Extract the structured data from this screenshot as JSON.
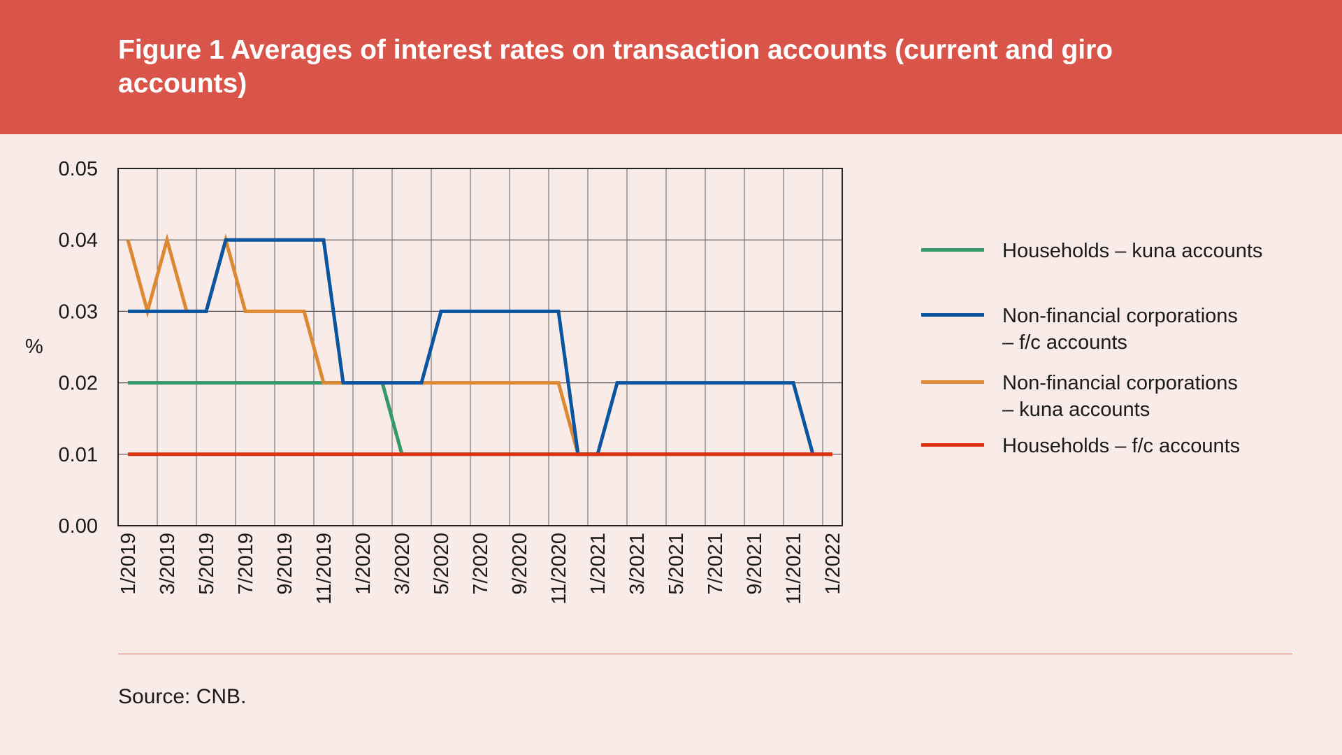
{
  "title": "Figure 1 Averages of interest rates on transaction accounts (current and giro accounts)",
  "source": "Source: CNB.",
  "chart_data": {
    "type": "line",
    "title": "Figure 1 Averages of interest rates on transaction accounts (current and giro accounts)",
    "ylabel": "%",
    "ylim": [
      0,
      0.05
    ],
    "yticks": [
      "0.00",
      "0.01",
      "0.02",
      "0.03",
      "0.04",
      "0.05"
    ],
    "grid": true,
    "legend_position": "right",
    "x": [
      "1/2019",
      "2/2019",
      "3/2019",
      "4/2019",
      "5/2019",
      "6/2019",
      "7/2019",
      "8/2019",
      "9/2019",
      "10/2019",
      "11/2019",
      "12/2019",
      "1/2020",
      "2/2020",
      "3/2020",
      "4/2020",
      "5/2020",
      "6/2020",
      "7/2020",
      "8/2020",
      "9/2020",
      "10/2020",
      "11/2020",
      "12/2020",
      "1/2021",
      "2/2021",
      "3/2021",
      "4/2021",
      "5/2021",
      "6/2021",
      "7/2021",
      "8/2021",
      "9/2021",
      "10/2021",
      "11/2021",
      "12/2021",
      "1/2022"
    ],
    "xtick_labels": [
      "1/2019",
      "3/2019",
      "5/2019",
      "7/2019",
      "9/2019",
      "11/2019",
      "1/2020",
      "3/2020",
      "5/2020",
      "7/2020",
      "9/2020",
      "11/2020",
      "1/2021",
      "3/2021",
      "5/2021",
      "7/2021",
      "9/2021",
      "11/2021",
      "1/2022"
    ],
    "series": [
      {
        "name": "Households – kuna accounts",
        "color": "#339966",
        "values": [
          0.02,
          0.02,
          0.02,
          0.02,
          0.02,
          0.02,
          0.02,
          0.02,
          0.02,
          0.02,
          0.02,
          0.02,
          0.02,
          0.02,
          0.01,
          0.01,
          0.01,
          0.01,
          0.01,
          0.01,
          0.01,
          0.01,
          0.01,
          0.01,
          0.01,
          0.01,
          0.01,
          0.01,
          0.01,
          0.01,
          0.01,
          0.01,
          0.01,
          0.01,
          0.01,
          0.01,
          0.01
        ]
      },
      {
        "name": "Non-financial corporations\n– kuna accounts",
        "color": "#dd8833",
        "values": [
          0.04,
          0.03,
          0.04,
          0.03,
          0.03,
          0.04,
          0.03,
          0.03,
          0.03,
          0.03,
          0.02,
          0.02,
          0.02,
          0.02,
          0.02,
          0.02,
          0.02,
          0.02,
          0.02,
          0.02,
          0.02,
          0.02,
          0.02,
          0.01,
          0.01,
          0.01,
          0.01,
          0.01,
          0.01,
          0.01,
          0.01,
          0.01,
          0.01,
          0.01,
          0.01,
          0.01,
          0.01
        ]
      },
      {
        "name": "Non-financial corporations\n– f/c accounts",
        "color": "#0b55a0",
        "values": [
          0.03,
          0.03,
          0.03,
          0.03,
          0.03,
          0.04,
          0.04,
          0.04,
          0.04,
          0.04,
          0.04,
          0.02,
          0.02,
          0.02,
          0.02,
          0.02,
          0.03,
          0.03,
          0.03,
          0.03,
          0.03,
          0.03,
          0.03,
          0.01,
          0.01,
          0.02,
          0.02,
          0.02,
          0.02,
          0.02,
          0.02,
          0.02,
          0.02,
          0.02,
          0.02,
          0.01,
          null
        ]
      },
      {
        "name": "Households – f/c accounts",
        "color": "#dd3311",
        "values": [
          0.01,
          0.01,
          0.01,
          0.01,
          0.01,
          0.01,
          0.01,
          0.01,
          0.01,
          0.01,
          0.01,
          0.01,
          0.01,
          0.01,
          0.01,
          0.01,
          0.01,
          0.01,
          0.01,
          0.01,
          0.01,
          0.01,
          0.01,
          0.01,
          0.01,
          0.01,
          0.01,
          0.01,
          0.01,
          0.01,
          0.01,
          0.01,
          0.01,
          0.01,
          0.01,
          0.01,
          0.01
        ]
      }
    ],
    "legend_order": [
      0,
      2,
      1,
      3
    ]
  }
}
